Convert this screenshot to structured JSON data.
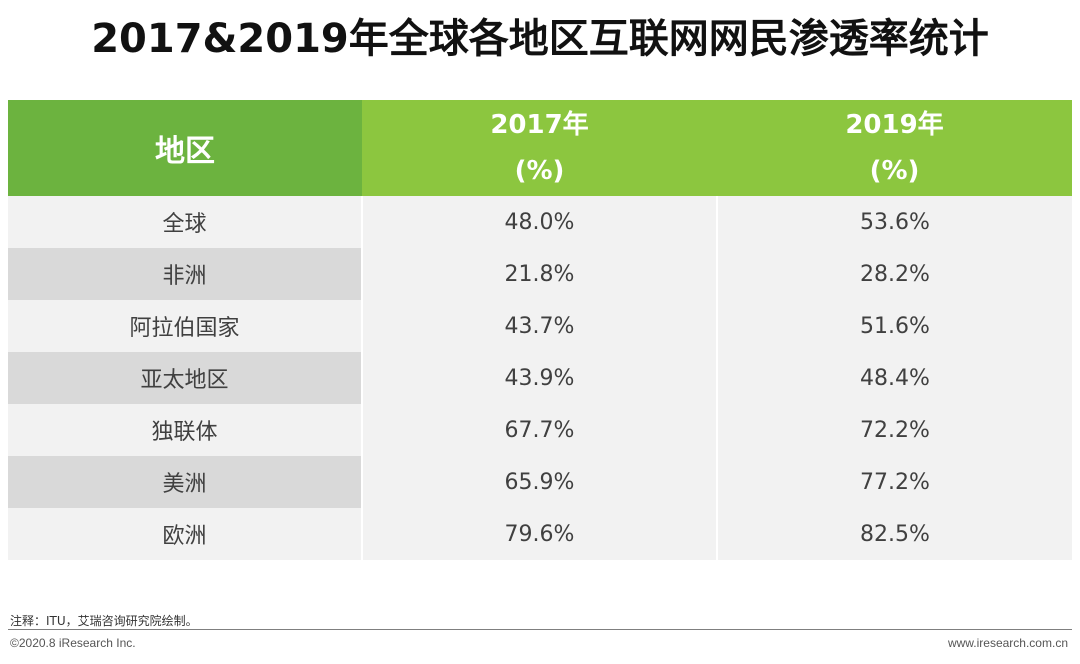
{
  "title": "2017&2019年全球各地区互联网网民渗透率统计",
  "table": {
    "headers": {
      "region": "地区",
      "y2017_line1": "2017年",
      "y2017_line2": "(%)",
      "y2019_line1": "2019年",
      "y2019_line2": "(%)"
    },
    "rows": [
      {
        "region": "全球",
        "y2017": "48.0%",
        "y2019": "53.6%"
      },
      {
        "region": "非洲",
        "y2017": "21.8%",
        "y2019": "28.2%"
      },
      {
        "region": "阿拉伯国家",
        "y2017": "43.7%",
        "y2019": "51.6%"
      },
      {
        "region": "亚太地区",
        "y2017": "43.9%",
        "y2019": "48.4%"
      },
      {
        "region": "独联体",
        "y2017": "67.7%",
        "y2019": "72.2%"
      },
      {
        "region": "美洲",
        "y2017": "65.9%",
        "y2019": "77.2%"
      },
      {
        "region": "欧洲",
        "y2017": "79.6%",
        "y2019": "82.5%"
      }
    ]
  },
  "footer": {
    "note": "注释：ITU，艾瑞咨询研究院绘制。",
    "copyright": "©2020.8 iResearch Inc.",
    "website": "www.iresearch.com.cn"
  },
  "colors": {
    "header_region": "#6cb33f",
    "header_year": "#8cc63f",
    "row_light": "#f2f2f2",
    "row_dark": "#d9d9d9"
  }
}
